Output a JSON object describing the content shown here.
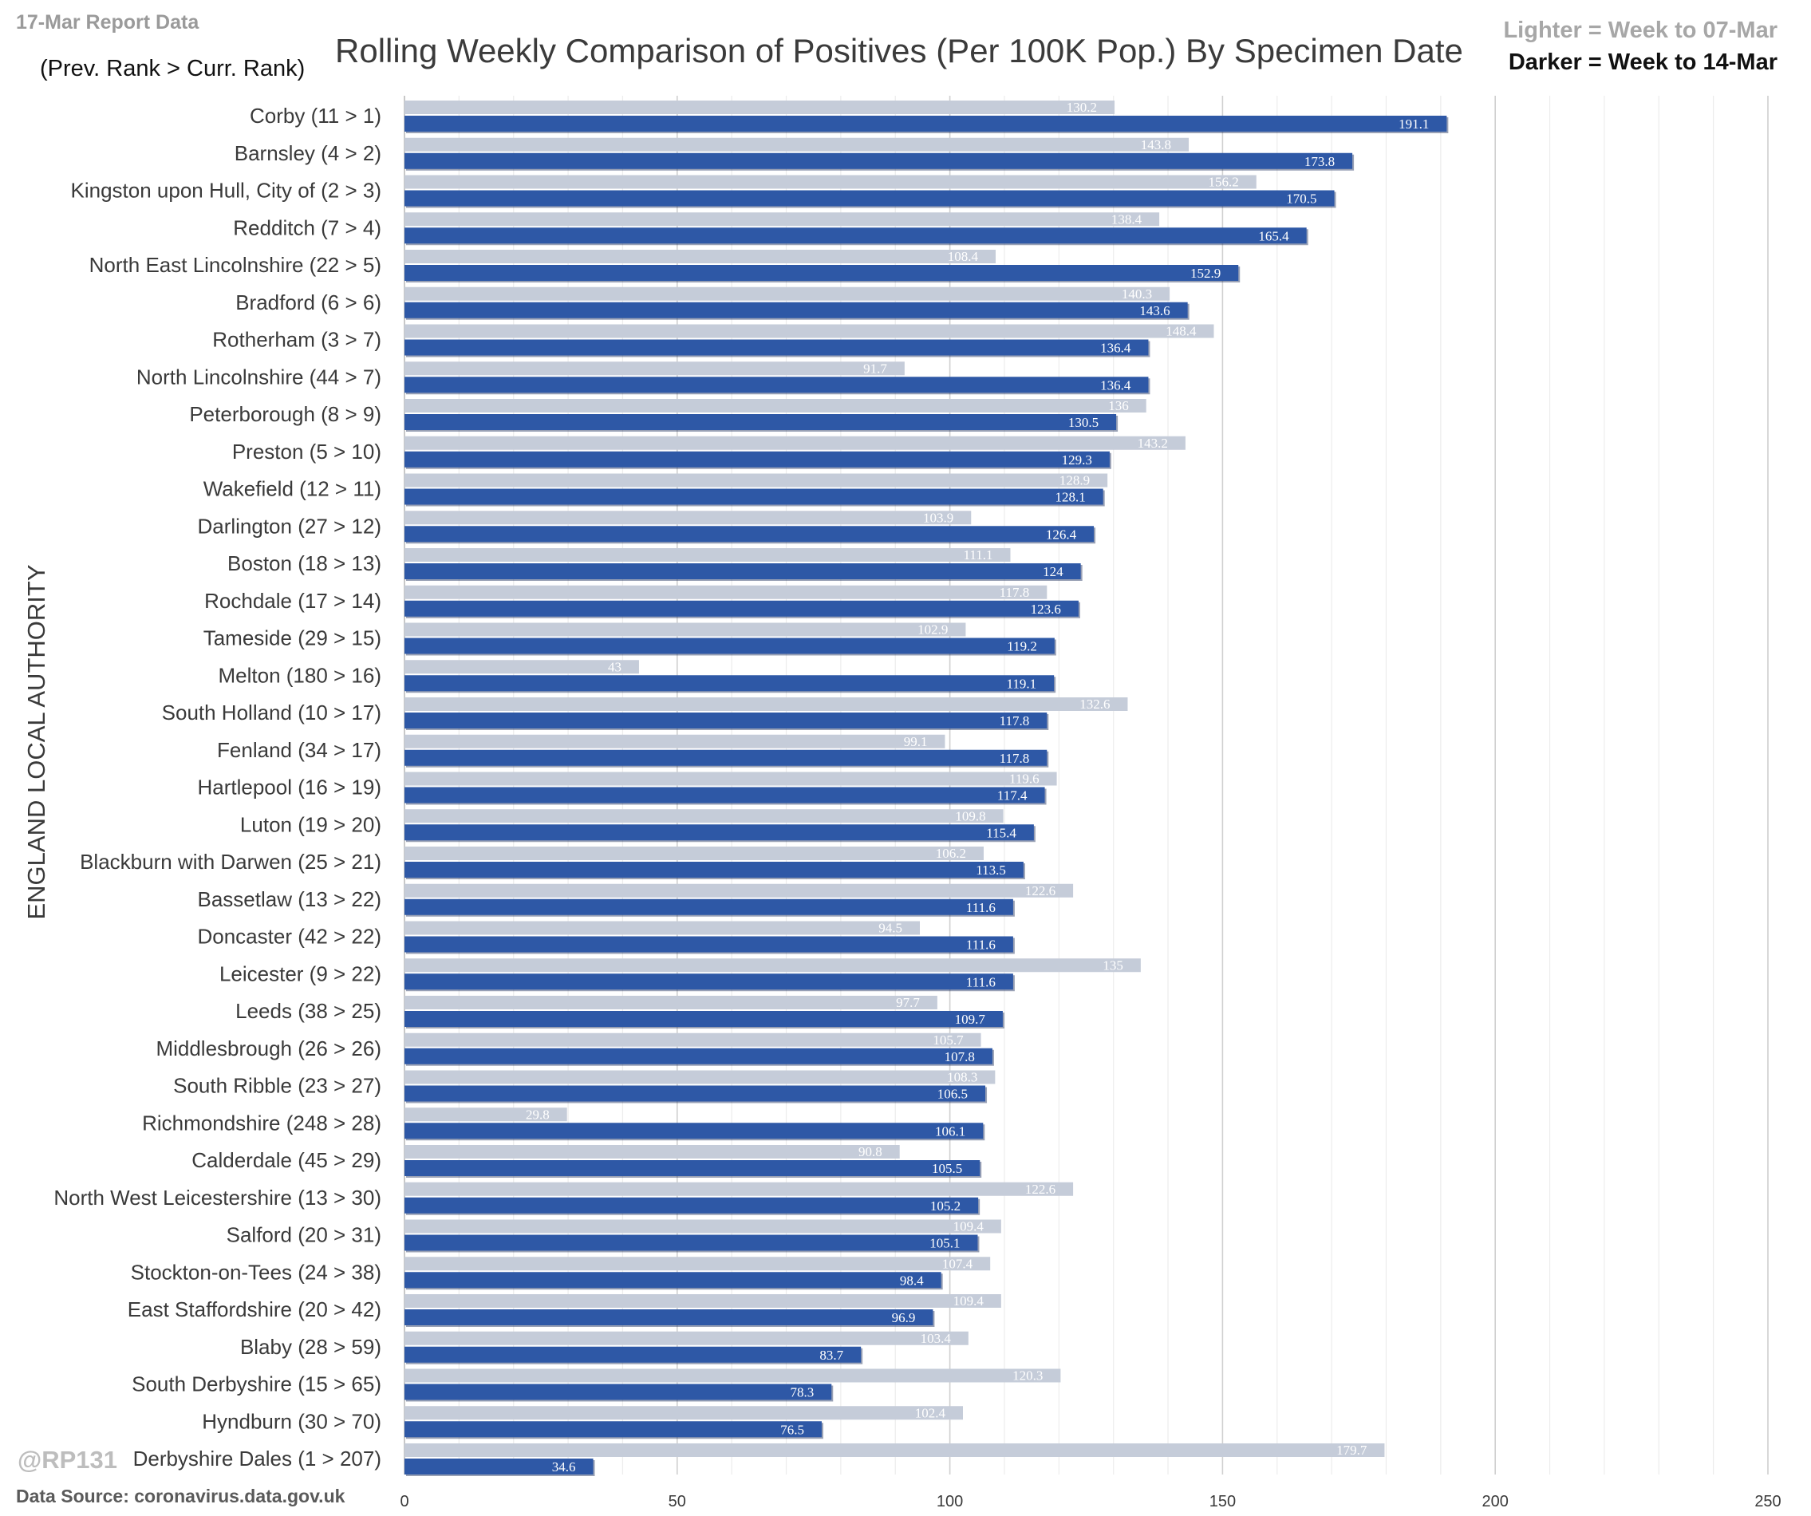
{
  "header": {
    "report_tag": "17-Mar Report Data",
    "rank_note": "(Prev. Rank > Curr. Rank)",
    "legend_lighter": "Lighter =  Week to 07-Mar",
    "legend_darker": "Darker =  Week to 14-Mar"
  },
  "footer": {
    "watermark": "@RP131",
    "data_source": "Data Source: coronavirus.data.gov.uk"
  },
  "colors": {
    "lighter_bar": "#c5ccd9",
    "darker_bar": "#2e58a6",
    "gridline": "#d9d9d9"
  },
  "chart_data": {
    "type": "bar",
    "orientation": "horizontal",
    "title": "Rolling Weekly Comparison of Positives  (Per 100K Pop.) By Specimen Date",
    "ylabel": "ENGLAND LOCAL AUTHORITY",
    "xlabel": "",
    "xlim": [
      0,
      250
    ],
    "xticks": [
      0,
      50,
      100,
      150,
      200,
      250
    ],
    "grid": true,
    "legend_position": "top-right",
    "categories": [
      "Corby (11 > 1)",
      "Barnsley (4 > 2)",
      "Kingston upon Hull, City of (2 > 3)",
      "Redditch (7 > 4)",
      "North East Lincolnshire (22 > 5)",
      "Bradford (6 > 6)",
      "Rotherham (3 > 7)",
      "North Lincolnshire (44 > 7)",
      "Peterborough (8 > 9)",
      "Preston (5 > 10)",
      "Wakefield (12 > 11)",
      "Darlington (27 > 12)",
      "Boston (18 > 13)",
      "Rochdale (17 > 14)",
      "Tameside (29 > 15)",
      "Melton (180 > 16)",
      "South Holland (10 > 17)",
      "Fenland (34 > 17)",
      "Hartlepool (16 > 19)",
      "Luton (19 > 20)",
      "Blackburn with Darwen (25 > 21)",
      "Bassetlaw (13 > 22)",
      "Doncaster (42 > 22)",
      "Leicester (9 > 22)",
      "Leeds (38 > 25)",
      "Middlesbrough (26 > 26)",
      "South Ribble (23 > 27)",
      "Richmondshire (248 > 28)",
      "Calderdale (45 > 29)",
      "North West Leicestershire (13 > 30)",
      "Salford (20 > 31)",
      "Stockton-on-Tees (24 > 38)",
      "East Staffordshire (20 > 42)",
      "Blaby (28 > 59)",
      "South Derbyshire (15 > 65)",
      "Hyndburn (30 > 70)",
      "Derbyshire Dales (1 > 207)"
    ],
    "series": [
      {
        "name": "Week to 07-Mar",
        "values": [
          130.2,
          143.8,
          156.2,
          138.4,
          108.4,
          140.3,
          148.4,
          91.7,
          136,
          143.2,
          128.9,
          103.9,
          111.1,
          117.8,
          102.9,
          43,
          132.6,
          99.1,
          119.6,
          109.8,
          106.2,
          122.6,
          94.5,
          135,
          97.7,
          105.7,
          108.3,
          29.8,
          90.8,
          122.6,
          109.4,
          107.4,
          109.4,
          103.4,
          120.3,
          102.4,
          179.7
        ]
      },
      {
        "name": "Week to 14-Mar",
        "values": [
          191.1,
          173.8,
          170.5,
          165.4,
          152.9,
          143.6,
          136.4,
          136.4,
          130.5,
          129.3,
          128.1,
          126.4,
          124,
          123.6,
          119.2,
          119.1,
          117.8,
          117.8,
          117.4,
          115.4,
          113.5,
          111.6,
          111.6,
          111.6,
          109.7,
          107.8,
          106.5,
          106.1,
          105.5,
          105.2,
          105.1,
          98.4,
          96.9,
          83.7,
          78.3,
          76.5,
          34.6
        ]
      }
    ]
  }
}
